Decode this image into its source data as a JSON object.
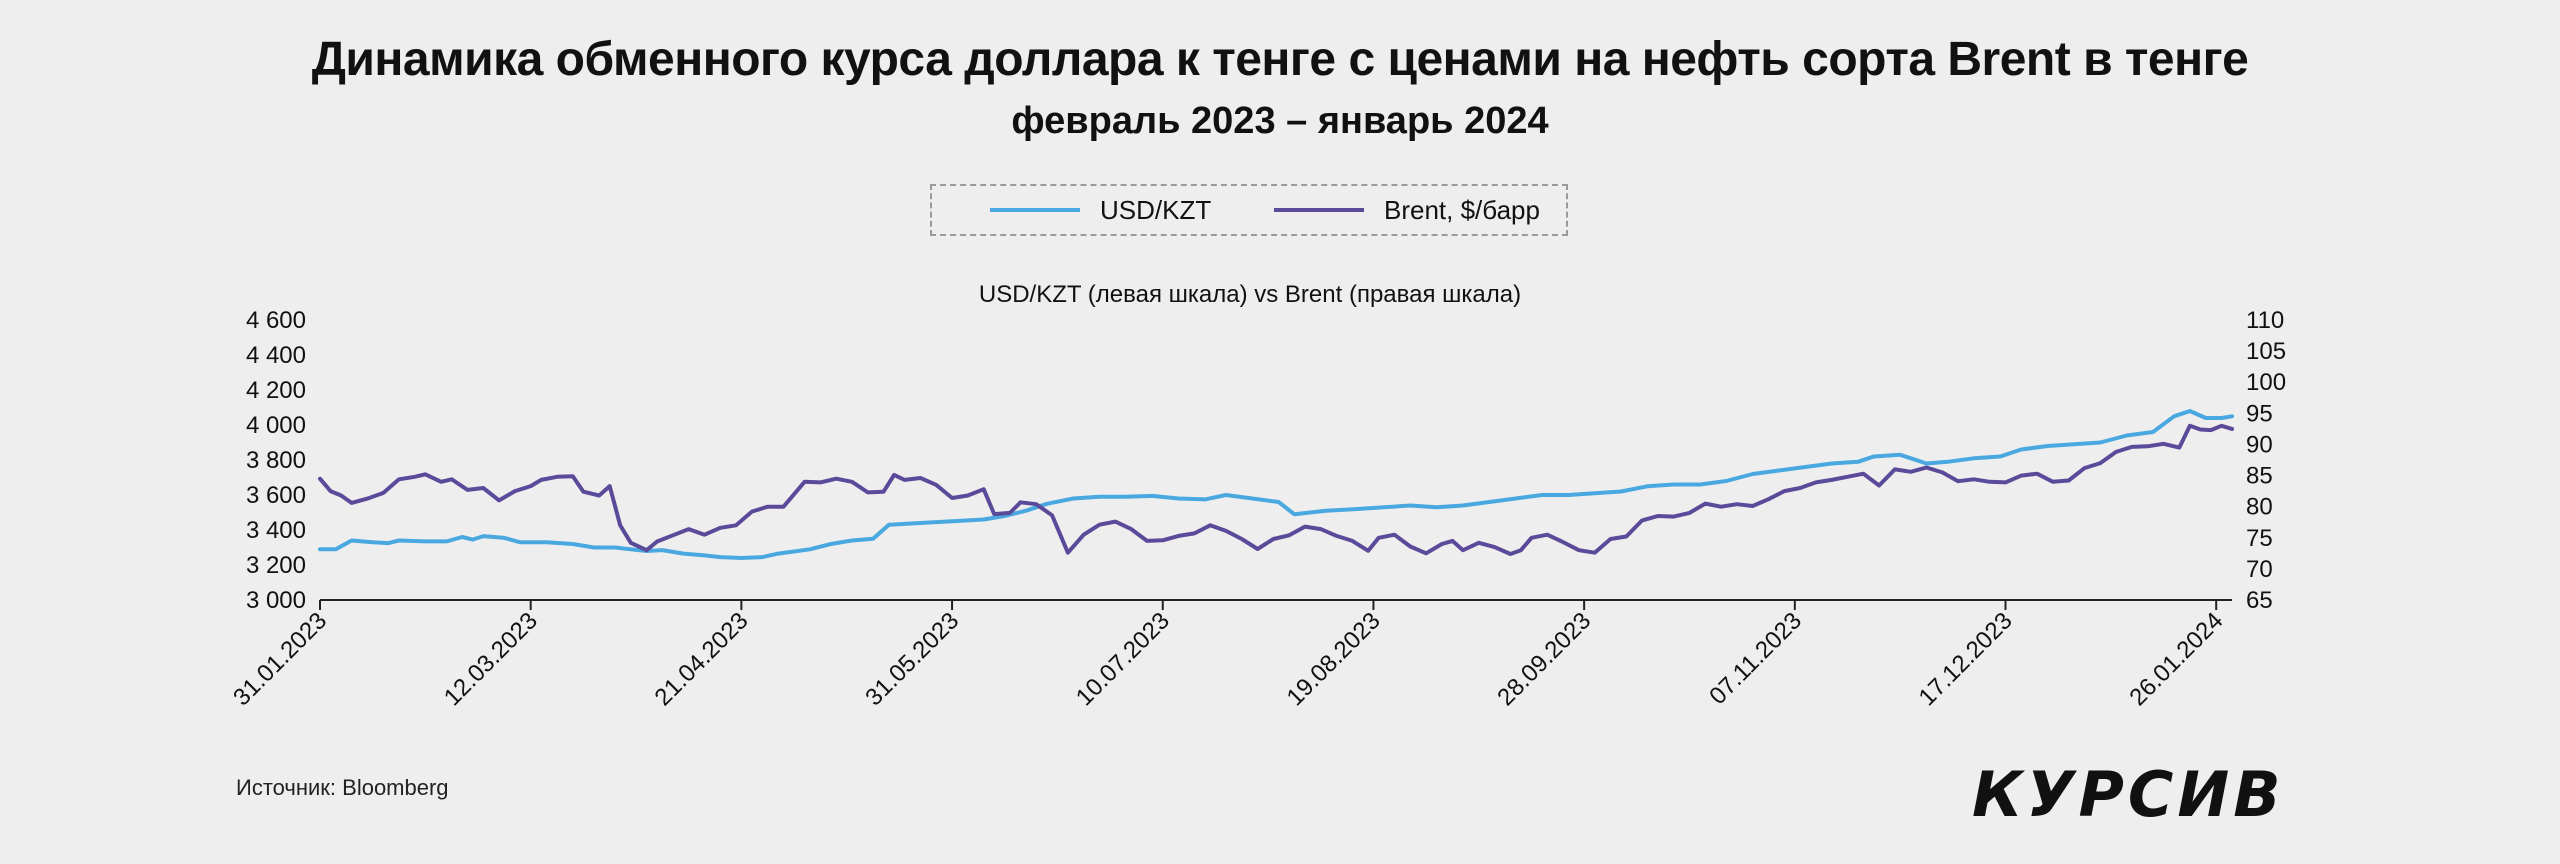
{
  "header": {
    "title": "Динамика обменного курса доллара к тенге с ценами на нефть сорта Brent в тенге",
    "subtitle": "февраль 2023 – январь 2024"
  },
  "footer": {
    "source": "Источник: Bloomberg",
    "logo": "КУРСИВ"
  },
  "colors": {
    "usd_kzt": "#4aa8e0",
    "brent": "#5b4a9a",
    "background": "#eeeeee"
  },
  "chart_data": {
    "type": "line",
    "title": "USD/KZT (левая шкала) vs Brent (правая шкала)",
    "legend_position": "top-center",
    "grid": false,
    "x_start": "31.01.2023",
    "x_end": "29.01.2024",
    "x_tick_labels": [
      "31.01.2023",
      "12.03.2023",
      "21.04.2023",
      "31.05.2023",
      "10.07.2023",
      "19.08.2023",
      "28.09.2023",
      "07.11.2023",
      "17.12.2023",
      "26.01.2024"
    ],
    "y_left": {
      "ylim": [
        3000,
        4600
      ],
      "ticks": [
        3000,
        3200,
        3400,
        3600,
        3800,
        4000,
        4200,
        4400,
        4600
      ],
      "tick_labels": [
        "3 000",
        "3 200",
        "3 400",
        "3 600",
        "3 800",
        "4 000",
        "4 200",
        "4 400",
        "4 600"
      ]
    },
    "y_right": {
      "ylim": [
        65,
        110
      ],
      "ticks": [
        65,
        70,
        75,
        80,
        85,
        90,
        95,
        100,
        105,
        110
      ],
      "tick_labels": [
        "65",
        "70",
        "75",
        "80",
        "85",
        "90",
        "95",
        "100",
        "105",
        "110"
      ]
    },
    "series": [
      {
        "name": "USD/KZT",
        "axis": "left",
        "color": "#4aa8e0",
        "points": [
          [
            "2023-01-31",
            3290
          ],
          [
            "2023-02-03",
            3290
          ],
          [
            "2023-02-06",
            3340
          ],
          [
            "2023-02-10",
            3330
          ],
          [
            "2023-02-13",
            3325
          ],
          [
            "2023-02-15",
            3340
          ],
          [
            "2023-02-20",
            3335
          ],
          [
            "2023-02-24",
            3335
          ],
          [
            "2023-02-27",
            3360
          ],
          [
            "2023-03-01",
            3345
          ],
          [
            "2023-03-03",
            3365
          ],
          [
            "2023-03-07",
            3355
          ],
          [
            "2023-03-10",
            3330
          ],
          [
            "2023-03-15",
            3330
          ],
          [
            "2023-03-20",
            3320
          ],
          [
            "2023-03-24",
            3300
          ],
          [
            "2023-03-28",
            3300
          ],
          [
            "2023-04-03",
            3280
          ],
          [
            "2023-04-06",
            3285
          ],
          [
            "2023-04-10",
            3265
          ],
          [
            "2023-04-14",
            3255
          ],
          [
            "2023-04-17",
            3245
          ],
          [
            "2023-04-21",
            3240
          ],
          [
            "2023-04-25",
            3245
          ],
          [
            "2023-04-28",
            3265
          ],
          [
            "2023-05-04",
            3290
          ],
          [
            "2023-05-08",
            3320
          ],
          [
            "2023-05-12",
            3340
          ],
          [
            "2023-05-16",
            3350
          ],
          [
            "2023-05-19",
            3430
          ],
          [
            "2023-05-25",
            3440
          ],
          [
            "2023-05-31",
            3450
          ],
          [
            "2023-06-06",
            3460
          ],
          [
            "2023-06-10",
            3480
          ],
          [
            "2023-06-14",
            3510
          ],
          [
            "2023-06-18",
            3550
          ],
          [
            "2023-06-23",
            3580
          ],
          [
            "2023-06-28",
            3590
          ],
          [
            "2023-07-03",
            3590
          ],
          [
            "2023-07-08",
            3595
          ],
          [
            "2023-07-13",
            3580
          ],
          [
            "2023-07-18",
            3575
          ],
          [
            "2023-07-22",
            3600
          ],
          [
            "2023-07-27",
            3580
          ],
          [
            "2023-08-01",
            3560
          ],
          [
            "2023-08-04",
            3490
          ],
          [
            "2023-08-10",
            3510
          ],
          [
            "2023-08-16",
            3520
          ],
          [
            "2023-08-21",
            3530
          ],
          [
            "2023-08-26",
            3540
          ],
          [
            "2023-08-31",
            3530
          ],
          [
            "2023-09-05",
            3540
          ],
          [
            "2023-09-10",
            3560
          ],
          [
            "2023-09-15",
            3580
          ],
          [
            "2023-09-20",
            3600
          ],
          [
            "2023-09-25",
            3600
          ],
          [
            "2023-09-30",
            3610
          ],
          [
            "2023-10-05",
            3620
          ],
          [
            "2023-10-10",
            3650
          ],
          [
            "2023-10-15",
            3660
          ],
          [
            "2023-10-20",
            3660
          ],
          [
            "2023-10-25",
            3680
          ],
          [
            "2023-10-30",
            3720
          ],
          [
            "2023-11-04",
            3740
          ],
          [
            "2023-11-09",
            3760
          ],
          [
            "2023-11-14",
            3780
          ],
          [
            "2023-11-19",
            3790
          ],
          [
            "2023-11-22",
            3820
          ],
          [
            "2023-11-27",
            3830
          ],
          [
            "2023-12-02",
            3780
          ],
          [
            "2023-12-06",
            3790
          ],
          [
            "2023-12-11",
            3810
          ],
          [
            "2023-12-16",
            3820
          ],
          [
            "2023-12-20",
            3860
          ],
          [
            "2023-12-25",
            3880
          ],
          [
            "2023-12-30",
            3890
          ],
          [
            "2024-01-04",
            3900
          ],
          [
            "2024-01-09",
            3940
          ],
          [
            "2024-01-14",
            3960
          ],
          [
            "2024-01-18",
            4050
          ],
          [
            "2024-01-21",
            4080
          ],
          [
            "2024-01-24",
            4040
          ],
          [
            "2024-01-27",
            4040
          ],
          [
            "2024-01-29",
            4050
          ]
        ]
      },
      {
        "name": "Brent, $/барр",
        "axis": "right",
        "color": "#5b4a9a",
        "points": [
          [
            "2023-01-31",
            84.5
          ],
          [
            "2023-02-02",
            82.5
          ],
          [
            "2023-02-04",
            81.8
          ],
          [
            "2023-02-06",
            80.6
          ],
          [
            "2023-02-09",
            81.3
          ],
          [
            "2023-02-12",
            82.2
          ],
          [
            "2023-02-15",
            84.4
          ],
          [
            "2023-02-18",
            84.8
          ],
          [
            "2023-02-20",
            85.2
          ],
          [
            "2023-02-23",
            84.0
          ],
          [
            "2023-02-25",
            84.4
          ],
          [
            "2023-02-28",
            82.7
          ],
          [
            "2023-03-03",
            83.0
          ],
          [
            "2023-03-06",
            81.0
          ],
          [
            "2023-03-09",
            82.5
          ],
          [
            "2023-03-12",
            83.3
          ],
          [
            "2023-03-14",
            84.3
          ],
          [
            "2023-03-17",
            84.8
          ],
          [
            "2023-03-20",
            84.9
          ],
          [
            "2023-03-22",
            82.4
          ],
          [
            "2023-03-25",
            81.8
          ],
          [
            "2023-03-27",
            83.3
          ],
          [
            "2023-03-29",
            77.0
          ],
          [
            "2023-03-31",
            74.2
          ],
          [
            "2023-04-03",
            73.0
          ],
          [
            "2023-04-05",
            74.4
          ],
          [
            "2023-04-08",
            75.4
          ],
          [
            "2023-04-11",
            76.4
          ],
          [
            "2023-04-14",
            75.5
          ],
          [
            "2023-04-17",
            76.6
          ],
          [
            "2023-04-20",
            77.0
          ],
          [
            "2023-04-23",
            79.2
          ],
          [
            "2023-04-26",
            80.0
          ],
          [
            "2023-04-29",
            80.0
          ],
          [
            "2023-05-03",
            84.0
          ],
          [
            "2023-05-06",
            83.9
          ],
          [
            "2023-05-09",
            84.5
          ],
          [
            "2023-05-12",
            84.0
          ],
          [
            "2023-05-15",
            82.3
          ],
          [
            "2023-05-18",
            82.4
          ],
          [
            "2023-05-20",
            85.1
          ],
          [
            "2023-05-22",
            84.3
          ],
          [
            "2023-05-25",
            84.6
          ],
          [
            "2023-05-28",
            83.5
          ],
          [
            "2023-05-31",
            81.4
          ],
          [
            "2023-06-03",
            81.8
          ],
          [
            "2023-06-06",
            82.8
          ],
          [
            "2023-06-08",
            78.8
          ],
          [
            "2023-06-11",
            79.0
          ],
          [
            "2023-06-13",
            80.7
          ],
          [
            "2023-06-16",
            80.4
          ],
          [
            "2023-06-19",
            78.6
          ],
          [
            "2023-06-22",
            72.6
          ],
          [
            "2023-06-25",
            75.5
          ],
          [
            "2023-06-28",
            77.1
          ],
          [
            "2023-07-01",
            77.6
          ],
          [
            "2023-07-04",
            76.4
          ],
          [
            "2023-07-07",
            74.5
          ],
          [
            "2023-07-10",
            74.6
          ],
          [
            "2023-07-13",
            75.3
          ],
          [
            "2023-07-16",
            75.7
          ],
          [
            "2023-07-19",
            77.0
          ],
          [
            "2023-07-22",
            76.1
          ],
          [
            "2023-07-25",
            74.8
          ],
          [
            "2023-07-28",
            73.2
          ],
          [
            "2023-07-31",
            74.8
          ],
          [
            "2023-08-03",
            75.4
          ],
          [
            "2023-08-06",
            76.8
          ],
          [
            "2023-08-09",
            76.4
          ],
          [
            "2023-08-12",
            75.3
          ],
          [
            "2023-08-15",
            74.5
          ],
          [
            "2023-08-18",
            72.9
          ],
          [
            "2023-08-20",
            75.0
          ],
          [
            "2023-08-23",
            75.5
          ],
          [
            "2023-08-26",
            73.6
          ],
          [
            "2023-08-29",
            72.5
          ],
          [
            "2023-09-01",
            74.0
          ],
          [
            "2023-09-03",
            74.5
          ],
          [
            "2023-09-05",
            73.0
          ],
          [
            "2023-09-08",
            74.2
          ],
          [
            "2023-09-11",
            73.5
          ],
          [
            "2023-09-14",
            72.4
          ],
          [
            "2023-09-16",
            73.0
          ],
          [
            "2023-09-18",
            75.0
          ],
          [
            "2023-09-21",
            75.5
          ],
          [
            "2023-09-24",
            74.3
          ],
          [
            "2023-09-27",
            73.0
          ],
          [
            "2023-09-30",
            72.6
          ],
          [
            "2023-10-03",
            74.8
          ],
          [
            "2023-10-06",
            75.2
          ],
          [
            "2023-10-09",
            77.8
          ],
          [
            "2023-10-12",
            78.5
          ],
          [
            "2023-10-15",
            78.4
          ],
          [
            "2023-10-18",
            79.0
          ],
          [
            "2023-10-21",
            80.5
          ],
          [
            "2023-10-24",
            80.0
          ],
          [
            "2023-10-27",
            80.4
          ],
          [
            "2023-10-30",
            80.1
          ],
          [
            "2023-11-02",
            81.2
          ],
          [
            "2023-11-05",
            82.5
          ],
          [
            "2023-11-08",
            83.0
          ],
          [
            "2023-11-11",
            83.9
          ],
          [
            "2023-11-14",
            84.3
          ],
          [
            "2023-11-17",
            84.8
          ],
          [
            "2023-11-20",
            85.3
          ],
          [
            "2023-11-23",
            83.4
          ],
          [
            "2023-11-26",
            86.0
          ],
          [
            "2023-11-29",
            85.6
          ],
          [
            "2023-12-02",
            86.3
          ],
          [
            "2023-12-05",
            85.5
          ],
          [
            "2023-12-08",
            84.1
          ],
          [
            "2023-12-11",
            84.4
          ],
          [
            "2023-12-14",
            84.0
          ],
          [
            "2023-12-17",
            83.9
          ],
          [
            "2023-12-20",
            85.0
          ],
          [
            "2023-12-23",
            85.3
          ],
          [
            "2023-12-26",
            84.0
          ],
          [
            "2023-12-29",
            84.2
          ],
          [
            "2024-01-01",
            86.2
          ],
          [
            "2024-01-04",
            87.0
          ],
          [
            "2024-01-07",
            88.8
          ],
          [
            "2024-01-10",
            89.6
          ],
          [
            "2024-01-13",
            89.7
          ],
          [
            "2024-01-16",
            90.1
          ],
          [
            "2024-01-19",
            89.5
          ],
          [
            "2024-01-21",
            93.0
          ],
          [
            "2024-01-23",
            92.4
          ],
          [
            "2024-01-25",
            92.3
          ],
          [
            "2024-01-27",
            93.0
          ],
          [
            "2024-01-29",
            92.5
          ]
        ]
      }
    ]
  }
}
